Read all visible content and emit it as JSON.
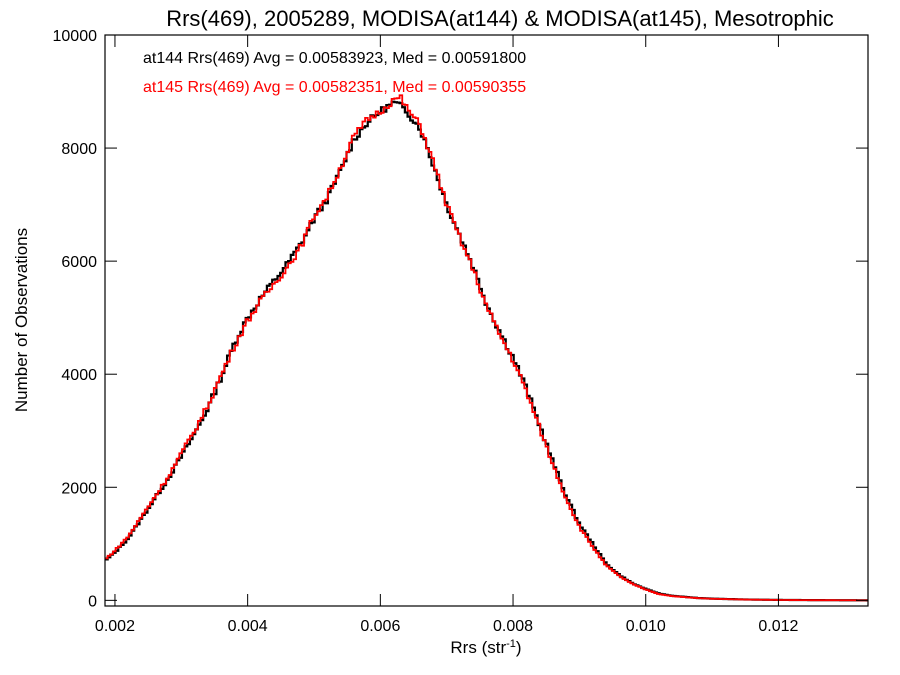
{
  "chart_data": {
    "type": "line",
    "title": "Rrs(469), 2005289, MODISA(at144) & MODISA(at145), Mesotrophic",
    "xlabel": "Rrs (str",
    "xlabel_sup": "-1",
    "xlabel_tail": ")",
    "ylabel": "Number of Observations",
    "xlim": [
      0.00185,
      0.01335
    ],
    "ylim": [
      -100,
      10000
    ],
    "x_ticks": [
      0.002,
      0.004,
      0.006,
      0.008,
      0.01,
      0.012
    ],
    "x_tick_labels": [
      "0.002",
      "0.004",
      "0.006",
      "0.008",
      "0.010",
      "0.012"
    ],
    "y_ticks": [
      0,
      2000,
      4000,
      6000,
      8000,
      10000
    ],
    "y_tick_labels": [
      "0",
      "2000",
      "4000",
      "6000",
      "8000",
      "10000"
    ],
    "grid": false,
    "annotations": [
      {
        "text": "at144 Rrs(469) Avg = 0.00583923, Med = 0.00591800",
        "color": "#000000"
      },
      {
        "text": "at145 Rrs(469) Avg = 0.00582351, Med = 0.00590355",
        "color": "#ff0000"
      }
    ],
    "series": [
      {
        "color": "#000000",
        "x": [
          0.00185,
          0.002,
          0.0022,
          0.0024,
          0.0026,
          0.0028,
          0.003,
          0.0032,
          0.0034,
          0.0036,
          0.0038,
          0.004,
          0.0042,
          0.0044,
          0.0046,
          0.0048,
          0.005,
          0.0052,
          0.0054,
          0.0056,
          0.0058,
          0.006,
          0.0062,
          0.0063,
          0.0064,
          0.0066,
          0.0068,
          0.007,
          0.0072,
          0.0074,
          0.0076,
          0.0078,
          0.008,
          0.0082,
          0.0084,
          0.0086,
          0.0088,
          0.009,
          0.0092,
          0.0094,
          0.0096,
          0.0098,
          0.01,
          0.0102,
          0.0104,
          0.0106,
          0.0108,
          0.011,
          0.0115,
          0.012,
          0.0125,
          0.013,
          0.01335
        ],
        "y": [
          700,
          850,
          1100,
          1450,
          1800,
          2150,
          2550,
          2950,
          3400,
          3950,
          4550,
          5000,
          5350,
          5650,
          5950,
          6300,
          6750,
          7100,
          7600,
          8150,
          8450,
          8650,
          8800,
          8750,
          8650,
          8350,
          7700,
          7000,
          6450,
          5900,
          5250,
          4750,
          4300,
          3750,
          3100,
          2450,
          1850,
          1350,
          1000,
          650,
          450,
          300,
          200,
          120,
          80,
          60,
          40,
          30,
          15,
          8,
          4,
          2,
          0
        ]
      },
      {
        "color": "#ff0000",
        "x": [
          0.00185,
          0.002,
          0.0022,
          0.0024,
          0.0026,
          0.0028,
          0.003,
          0.0032,
          0.0034,
          0.0036,
          0.0038,
          0.004,
          0.0042,
          0.0044,
          0.0046,
          0.0048,
          0.005,
          0.0052,
          0.0054,
          0.0056,
          0.0058,
          0.006,
          0.0062,
          0.0063,
          0.0064,
          0.0066,
          0.0068,
          0.007,
          0.0072,
          0.0074,
          0.0076,
          0.0078,
          0.008,
          0.0082,
          0.0084,
          0.0086,
          0.0088,
          0.009,
          0.0092,
          0.0094,
          0.0096,
          0.0098,
          0.01,
          0.0102,
          0.0104,
          0.0106,
          0.0108,
          0.011,
          0.0115,
          0.012,
          0.0125,
          0.013,
          0.01335
        ],
        "y": [
          720,
          880,
          1130,
          1480,
          1830,
          2180,
          2600,
          3000,
          3450,
          3980,
          4500,
          4950,
          5300,
          5600,
          5900,
          6250,
          6800,
          7150,
          7650,
          8200,
          8500,
          8650,
          8850,
          8900,
          8700,
          8400,
          7750,
          7000,
          6400,
          5850,
          5200,
          4700,
          4250,
          3700,
          3050,
          2400,
          1800,
          1300,
          950,
          620,
          430,
          290,
          190,
          110,
          75,
          55,
          38,
          28,
          14,
          7,
          3,
          2,
          0
        ]
      }
    ]
  }
}
